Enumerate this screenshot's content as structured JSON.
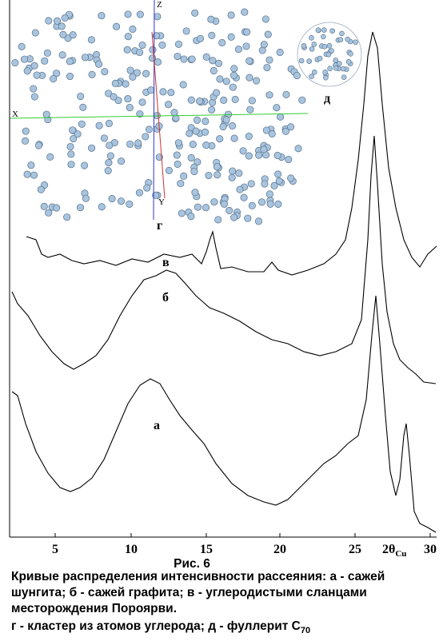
{
  "figure": {
    "xticks": [
      "5",
      "10",
      "15",
      "20",
      "25",
      "30"
    ],
    "xlabel": {
      "main": "2θ",
      "sub": "Cu"
    },
    "curve_labels": {
      "a": "а",
      "b": "б",
      "c": "в"
    },
    "inset_labels": {
      "cluster": "г",
      "fullerene": "д",
      "x": "X",
      "y": "Y",
      "z": "Z"
    }
  },
  "caption": {
    "number": "Рис. 6",
    "lines": [
      "Кривые распределения интенсивности рассеяния: а - сажей",
      "шунгита; б - сажей графита; в - углеродистыми сланцами",
      "месторождения Пороярви."
    ],
    "last_line": {
      "main": "г - кластер из атомов углерода; д - фуллерит С",
      "sub": "70"
    }
  }
}
